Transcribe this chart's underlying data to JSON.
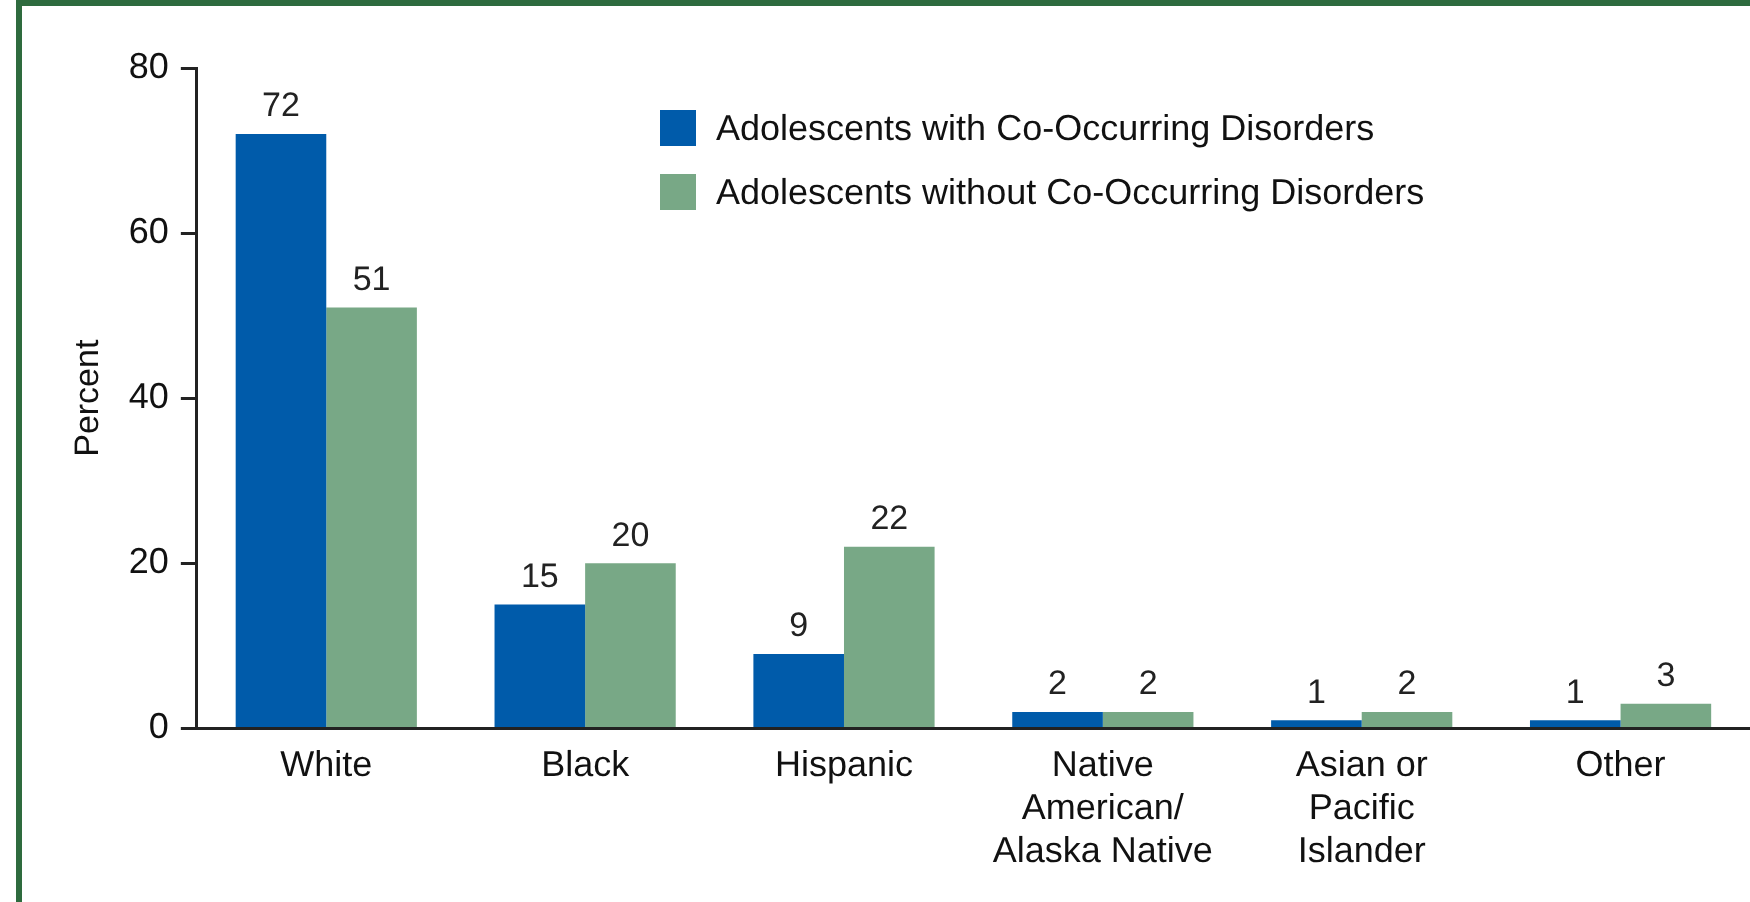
{
  "chart_data": {
    "type": "bar",
    "ylabel": "Percent",
    "categories": [
      "White",
      "Black",
      "Hispanic",
      "Native American/ Alaska Native",
      "Asian or Pacific Islander",
      "Other"
    ],
    "series": [
      {
        "name": "Adolescents with Co-Occurring Disorders",
        "color": "#005baa",
        "values": [
          72,
          15,
          9,
          2,
          1,
          1
        ]
      },
      {
        "name": "Adolescents without Co-Occurring Disorders",
        "color": "#78a886",
        "values": [
          51,
          20,
          22,
          2,
          2,
          3
        ]
      }
    ],
    "ylim": [
      0,
      80
    ],
    "yticks": [
      0,
      20,
      40,
      60,
      80
    ],
    "grid": false,
    "legend": "top right",
    "data_labels": true
  }
}
